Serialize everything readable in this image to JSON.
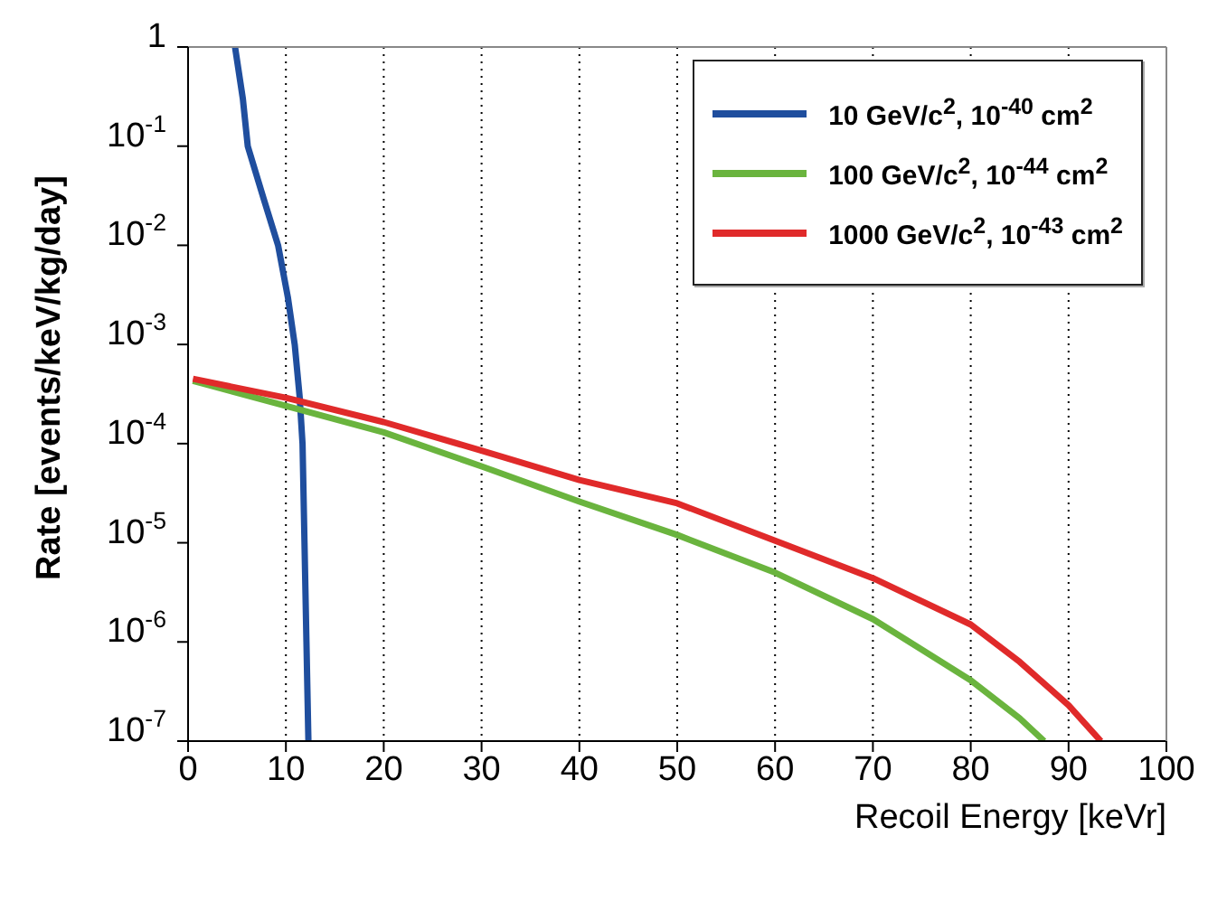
{
  "chart_data": {
    "type": "line",
    "xlabel": "Recoil Energy [keVr]",
    "ylabel": "Rate [events/keV/kg/day]",
    "log": "y",
    "grid": "x",
    "legend": "top right",
    "line_style": "solid",
    "marker": "none",
    "xlim": [
      0,
      100
    ],
    "xticks": [
      0,
      10,
      20,
      30,
      40,
      50,
      60,
      70,
      80,
      90,
      100
    ],
    "ylim": [
      1e-07,
      1
    ],
    "yticks": [
      {
        "value": 1e-07,
        "label": "10$^{-7}$"
      },
      {
        "value": 1e-06,
        "label": "10$^{-6}$"
      },
      {
        "value": 1e-05,
        "label": "10$^{-5}$"
      },
      {
        "value": 0.0001,
        "label": "10$^{-4}$"
      },
      {
        "value": 0.001,
        "label": "10$^{-3}$"
      },
      {
        "value": 0.01,
        "label": "10$^{-2}$"
      },
      {
        "value": 0.1,
        "label": "10$^{-1}$"
      },
      1
    ],
    "series": [
      {
        "name": "10 GeV/c$^{2}$, 10$^{-40}$ cm$^{2}$",
        "color": "#1f4e9e",
        "x": [
          4.8,
          5.6,
          6.1,
          7.7,
          9.2,
          10.2,
          10.9,
          11.4,
          11.7,
          11.9,
          12.1,
          12.3
        ],
        "values": [
          1,
          0.3,
          0.1,
          0.03,
          0.01,
          0.003,
          0.001,
          0.0003,
          0.0001,
          1e-05,
          1e-06,
          1e-07
        ]
      },
      {
        "name": "100 GeV/c$^{2}$, 10$^{-44}$ cm$^{2}$",
        "color": "#6ab43e",
        "x": [
          0.5,
          10,
          20,
          30,
          40,
          50,
          60,
          70,
          80,
          85,
          87.5
        ],
        "values": [
          0.00043,
          0.00024,
          0.00013,
          5.9e-05,
          2.6e-05,
          1.2e-05,
          5e-06,
          1.7e-06,
          4.1e-07,
          1.7e-07,
          1e-07
        ]
      },
      {
        "name": "1000 GeV/c$^{2}$, 10$^{-43}$ cm$^{2}$",
        "color": "#e02a2a",
        "x": [
          0.5,
          10,
          20,
          30,
          40,
          50,
          60,
          70,
          80,
          85,
          90,
          93.3
        ],
        "values": [
          0.00045,
          0.00029,
          0.000165,
          8.5e-05,
          4.3e-05,
          2.5e-05,
          1.05e-05,
          4.4e-06,
          1.5e-06,
          6.3e-07,
          2.3e-07,
          1e-07
        ]
      }
    ]
  }
}
